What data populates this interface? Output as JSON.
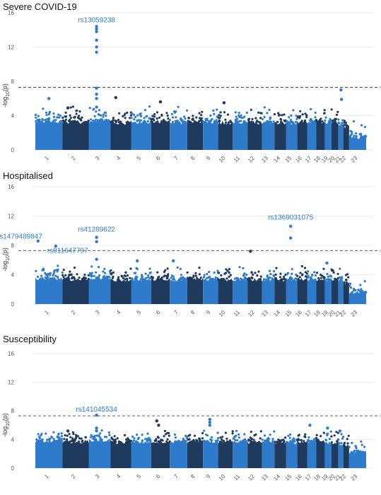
{
  "colors": {
    "dark": "#1f3a5c",
    "light": "#2f7bcb",
    "annotation": "#2f7bcb",
    "threshold": "#444444",
    "grid": "#e6e6e6"
  },
  "chart_data": [
    {
      "type": "scatter",
      "subtype": "manhattan",
      "title": "Severe COVID-19",
      "ylabel": "-log10(p)",
      "ylim": [
        0,
        16
      ],
      "yticks": [
        0,
        4,
        8,
        12,
        16
      ],
      "threshold": 7.3,
      "categories": [
        "1",
        "2",
        "3",
        "4",
        "5",
        "6",
        "7",
        "8",
        "9",
        "10",
        "11",
        "12",
        "13",
        "14",
        "15",
        "16",
        "17",
        "18",
        "19",
        "20",
        "21",
        "22",
        "23"
      ],
      "base_height": [
        3.3,
        3.3,
        3.4,
        3.2,
        3.3,
        3.3,
        3.2,
        3.3,
        3.3,
        3.2,
        3.3,
        3.2,
        3.2,
        3.2,
        3.2,
        3.3,
        3.3,
        3.3,
        3.2,
        3.2,
        3.1,
        2.8,
        1.5
      ],
      "peaks": [
        {
          "chr": "1",
          "pos": 0.5,
          "y": 6.0
        },
        {
          "chr": "2",
          "pos": 0.2,
          "y": 4.9
        },
        {
          "chr": "3",
          "pos": 0.35,
          "y": 14.4
        },
        {
          "chr": "3",
          "pos": 0.35,
          "y": 14.1
        },
        {
          "chr": "3",
          "pos": 0.35,
          "y": 13.8
        },
        {
          "chr": "3",
          "pos": 0.35,
          "y": 12.8
        },
        {
          "chr": "3",
          "pos": 0.35,
          "y": 12.0
        },
        {
          "chr": "3",
          "pos": 0.35,
          "y": 11.4
        },
        {
          "chr": "3",
          "pos": 0.35,
          "y": 7.2
        },
        {
          "chr": "3",
          "pos": 0.35,
          "y": 6.5
        },
        {
          "chr": "3",
          "pos": 0.35,
          "y": 6.0
        },
        {
          "chr": "3",
          "pos": 0.35,
          "y": 5.0
        },
        {
          "chr": "4",
          "pos": 0.25,
          "y": 6.1
        },
        {
          "chr": "6",
          "pos": 0.5,
          "y": 5.6
        },
        {
          "chr": "10",
          "pos": 0.4,
          "y": 5.5
        },
        {
          "chr": "21",
          "pos": 0.5,
          "y": 7.0
        },
        {
          "chr": "21",
          "pos": 0.6,
          "y": 5.9
        }
      ],
      "annotations": [
        {
          "text": "rs13059238",
          "chr": "3",
          "pos": 0.35,
          "y": 14.9
        }
      ]
    },
    {
      "type": "scatter",
      "subtype": "manhattan",
      "title": "Hospitalised",
      "ylabel": "-log10(p)",
      "ylim": [
        0,
        16
      ],
      "yticks": [
        0,
        4,
        8,
        12,
        16
      ],
      "threshold": 7.3,
      "categories": [
        "1",
        "2",
        "3",
        "4",
        "5",
        "6",
        "7",
        "8",
        "9",
        "10",
        "11",
        "12",
        "13",
        "14",
        "15",
        "16",
        "17",
        "18",
        "19",
        "20",
        "21",
        "22",
        "23"
      ],
      "base_height": [
        3.5,
        3.4,
        3.6,
        3.3,
        3.4,
        3.4,
        3.3,
        3.4,
        3.4,
        3.3,
        3.4,
        3.3,
        3.3,
        3.3,
        3.3,
        3.4,
        3.4,
        3.4,
        3.3,
        3.3,
        3.2,
        2.9,
        1.6
      ],
      "peaks": [
        {
          "chr": "1",
          "pos": 0.1,
          "y": 8.6
        },
        {
          "chr": "1",
          "pos": 0.75,
          "y": 7.9
        },
        {
          "chr": "3",
          "pos": 0.35,
          "y": 9.1
        },
        {
          "chr": "3",
          "pos": 0.35,
          "y": 8.5
        },
        {
          "chr": "3",
          "pos": 0.35,
          "y": 6.1
        },
        {
          "chr": "5",
          "pos": 0.3,
          "y": 5.9
        },
        {
          "chr": "7",
          "pos": 0.2,
          "y": 5.9
        },
        {
          "chr": "12",
          "pos": 0.2,
          "y": 7.2
        },
        {
          "chr": "15",
          "pos": 0.4,
          "y": 10.6
        },
        {
          "chr": "15",
          "pos": 0.4,
          "y": 9.0
        },
        {
          "chr": "19",
          "pos": 0.3,
          "y": 5.6
        }
      ],
      "annotations": [
        {
          "text": "rs1479489847",
          "chr": "1",
          "pos": 0.1,
          "y": 8.9,
          "anchor": "end",
          "dx": 6
        },
        {
          "text": "rs911647797",
          "chr": "1",
          "pos": 0.75,
          "y": 7.0,
          "anchor": "start",
          "dx": -12
        },
        {
          "text": "rs41289622",
          "chr": "3",
          "pos": 0.35,
          "y": 9.9
        },
        {
          "text": "rs1369031075",
          "chr": "15",
          "pos": 0.4,
          "y": 11.5
        }
      ]
    },
    {
      "type": "scatter",
      "subtype": "manhattan",
      "title": "Susceptibility",
      "ylabel": "-log10(p)",
      "ylim": [
        0,
        16
      ],
      "yticks": [
        0,
        4,
        8,
        12,
        16
      ],
      "threshold": 7.3,
      "categories": [
        "1",
        "2",
        "3",
        "4",
        "5",
        "6",
        "7",
        "8",
        "9",
        "10",
        "11",
        "12",
        "13",
        "14",
        "15",
        "16",
        "17",
        "18",
        "19",
        "20",
        "21",
        "22",
        "23"
      ],
      "base_height": [
        3.8,
        3.7,
        3.9,
        3.6,
        3.7,
        3.7,
        3.6,
        3.7,
        3.7,
        3.6,
        3.7,
        3.6,
        3.6,
        3.6,
        3.6,
        3.7,
        3.7,
        3.7,
        3.6,
        3.6,
        3.4,
        3.1,
        2.2
      ],
      "peaks": [
        {
          "chr": "2",
          "pos": 0.2,
          "y": 5.2
        },
        {
          "chr": "3",
          "pos": 0.35,
          "y": 7.4
        },
        {
          "chr": "3",
          "pos": 0.35,
          "y": 5.6
        },
        {
          "chr": "3",
          "pos": 0.35,
          "y": 5.2
        },
        {
          "chr": "6",
          "pos": 0.3,
          "y": 6.6
        },
        {
          "chr": "6",
          "pos": 0.4,
          "y": 6.0
        },
        {
          "chr": "9",
          "pos": 0.45,
          "y": 6.8
        },
        {
          "chr": "9",
          "pos": 0.45,
          "y": 6.4
        },
        {
          "chr": "9",
          "pos": 0.45,
          "y": 6.0
        },
        {
          "chr": "17",
          "pos": 0.3,
          "y": 6.0
        },
        {
          "chr": "19",
          "pos": 0.4,
          "y": 5.6
        },
        {
          "chr": "21",
          "pos": 0.3,
          "y": 5.2
        }
      ],
      "annotations": [
        {
          "text": "rs141045534",
          "chr": "3",
          "pos": 0.35,
          "y": 7.9
        }
      ]
    }
  ]
}
